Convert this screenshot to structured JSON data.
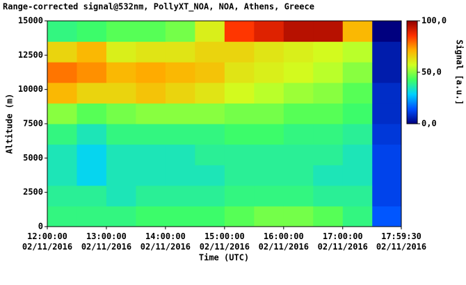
{
  "chart_data": {
    "type": "heatmap",
    "title": "Range-corrected signal@532nm, PollyXT_NOA, NOA, Athens, Greece",
    "x_label": "Time (UTC)",
    "y_label": "Altitude (m)",
    "colorbar_label": "Signal [a.u.]",
    "xlim": [
      "2016-11-02T12:00:00",
      "2016-11-02T17:59:30"
    ],
    "xticks": [
      {
        "value": "2016-11-02T12:00:00",
        "label": "12:00:00 02/11/2016"
      },
      {
        "value": "2016-11-02T13:00:00",
        "label": "13:00:00 02/11/2016"
      },
      {
        "value": "2016-11-02T14:00:00",
        "label": "14:00:00 02/11/2016"
      },
      {
        "value": "2016-11-02T15:00:00",
        "label": "15:00:00 02/11/2016"
      },
      {
        "value": "2016-11-02T16:00:00",
        "label": "16:00:00 02/11/2016"
      },
      {
        "value": "2016-11-02T17:00:00",
        "label": "17:00:00 02/11/2016"
      },
      {
        "value": "2016-11-02T17:59:30",
        "label": "17:59:30 02/11/2016"
      }
    ],
    "ylim": [
      0,
      15000
    ],
    "yticks": [
      0,
      2500,
      5000,
      7500,
      10000,
      12500,
      15000
    ],
    "clim": [
      0,
      100
    ],
    "cticks": [
      {
        "value": 0,
        "label": "0,0"
      },
      {
        "value": 50,
        "label": "50,0"
      },
      {
        "value": 100,
        "label": "100,0"
      }
    ],
    "colormap": [
      "#00007f",
      "#0050ff",
      "#00d0ff",
      "#40ff60",
      "#d0ff20",
      "#ffb000",
      "#ff3000",
      "#900000"
    ],
    "xbins": [
      "2016-11-02T12:00:00",
      "2016-11-02T12:30:00",
      "2016-11-02T13:00:00",
      "2016-11-02T13:30:00",
      "2016-11-02T14:00:00",
      "2016-11-02T14:30:00",
      "2016-11-02T15:00:00",
      "2016-11-02T15:30:00",
      "2016-11-02T16:00:00",
      "2016-11-02T16:30:00",
      "2016-11-02T17:00:00",
      "2016-11-02T17:30:00",
      "2016-11-02T17:59:30"
    ],
    "ybins": [
      0,
      1500,
      3000,
      4500,
      6000,
      7500,
      9000,
      10500,
      12000,
      13500,
      15000
    ],
    "values": [
      [
        40,
        40,
        40,
        42,
        42,
        42,
        45,
        48,
        48,
        45,
        40,
        15
      ],
      [
        38,
        38,
        35,
        38,
        38,
        38,
        40,
        40,
        40,
        38,
        38,
        12
      ],
      [
        35,
        30,
        35,
        35,
        35,
        35,
        38,
        38,
        38,
        35,
        35,
        12
      ],
      [
        35,
        30,
        35,
        35,
        35,
        38,
        38,
        38,
        38,
        38,
        35,
        12
      ],
      [
        40,
        35,
        40,
        40,
        40,
        40,
        42,
        42,
        40,
        40,
        38,
        10
      ],
      [
        50,
        45,
        48,
        50,
        50,
        50,
        48,
        48,
        45,
        45,
        42,
        8
      ],
      [
        70,
        65,
        65,
        68,
        65,
        62,
        58,
        55,
        52,
        50,
        45,
        8
      ],
      [
        78,
        75,
        70,
        72,
        70,
        68,
        62,
        60,
        58,
        55,
        50,
        5
      ],
      [
        65,
        70,
        60,
        62,
        62,
        65,
        65,
        62,
        60,
        58,
        55,
        5
      ],
      [
        40,
        42,
        45,
        45,
        48,
        60,
        85,
        90,
        95,
        95,
        70,
        0
      ]
    ]
  }
}
